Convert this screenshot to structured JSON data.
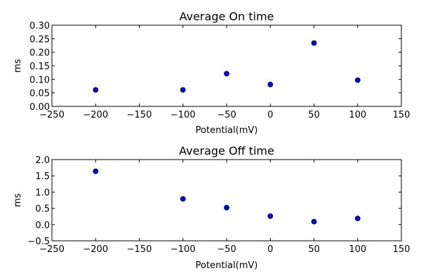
{
  "chart_data": [
    {
      "type": "scatter",
      "title": "Average On time",
      "xlabel": "Potential(mV)",
      "ylabel": "ms",
      "xlim": [
        -250,
        150
      ],
      "ylim": [
        0.0,
        0.3
      ],
      "xticks": [
        "−250",
        "−200",
        "−150",
        "−100",
        "−50",
        "0",
        "50",
        "100",
        "150"
      ],
      "yticks": [
        "0.00",
        "0.05",
        "0.10",
        "0.15",
        "0.20",
        "0.25",
        "0.30"
      ],
      "grid": false,
      "marker_color": "#0000ff",
      "x": [
        -200,
        -100,
        -50,
        0,
        50,
        100
      ],
      "y": [
        0.061,
        0.061,
        0.121,
        0.081,
        0.234,
        0.097
      ]
    },
    {
      "type": "scatter",
      "title": "Average Off time",
      "xlabel": "Potential(mV)",
      "ylabel": "ms",
      "xlim": [
        -250,
        150
      ],
      "ylim": [
        -0.5,
        2.0
      ],
      "xticks": [
        "−250",
        "−200",
        "−150",
        "−100",
        "−50",
        "0",
        "50",
        "100",
        "150"
      ],
      "yticks": [
        "−0.5",
        "0.0",
        "0.5",
        "1.0",
        "1.5",
        "2.0"
      ],
      "grid": false,
      "marker_color": "#0000ff",
      "x": [
        -200,
        -100,
        -50,
        0,
        50,
        100
      ],
      "y": [
        1.64,
        0.79,
        0.52,
        0.26,
        0.09,
        0.19
      ]
    }
  ]
}
